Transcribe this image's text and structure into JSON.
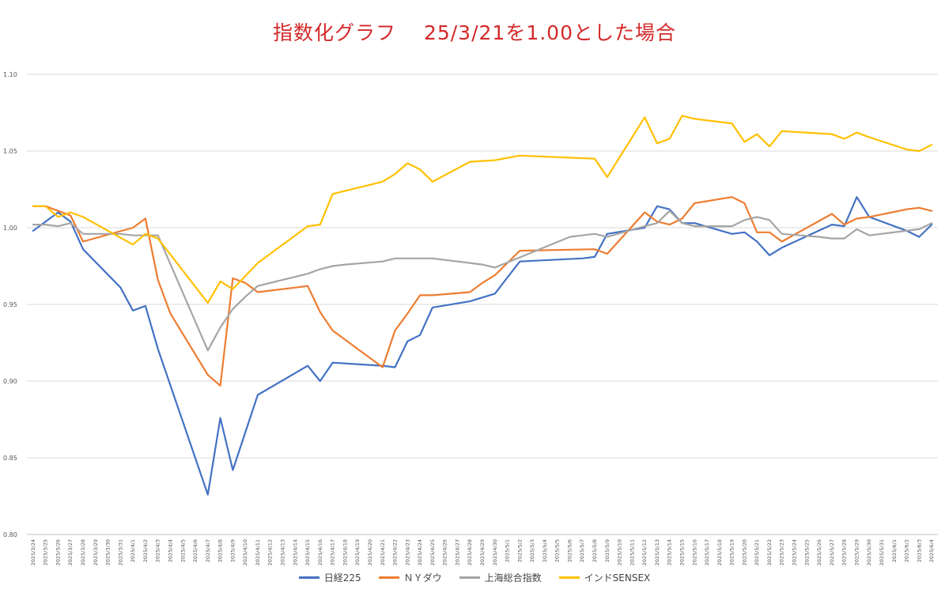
{
  "chart_data": {
    "type": "line",
    "title": "指数化グラフ　 25/3/21を1.00とした場合",
    "ylim": [
      0.8,
      1.1
    ],
    "yticks": [
      "0.80",
      "0.85",
      "0.90",
      "0.95",
      "1.00",
      "1.05",
      "1.10"
    ],
    "grid": true,
    "legend_position": "bottom",
    "categories": [
      "2025/3/24",
      "2025/3/25",
      "2025/3/26",
      "2025/3/27",
      "2025/3/28",
      "2025/3/29",
      "2025/3/30",
      "2025/3/31",
      "2025/4/1",
      "2025/4/2",
      "2025/4/3",
      "2025/4/4",
      "2025/4/5",
      "2025/4/6",
      "2025/4/7",
      "2025/4/8",
      "2025/4/9",
      "2025/4/10",
      "2025/4/11",
      "2025/4/12",
      "2025/4/13",
      "2025/4/14",
      "2025/4/15",
      "2025/4/16",
      "2025/4/17",
      "2025/4/18",
      "2025/4/19",
      "2025/4/20",
      "2025/4/21",
      "2025/4/22",
      "2025/4/23",
      "2025/4/24",
      "2025/4/25",
      "2025/4/26",
      "2025/4/27",
      "2025/4/28",
      "2025/4/29",
      "2025/4/30",
      "2025/5/1",
      "2025/5/2",
      "2025/5/3",
      "2025/5/4",
      "2025/5/5",
      "2025/5/6",
      "2025/5/7",
      "2025/5/8",
      "2025/5/9",
      "2025/5/10",
      "2025/5/11",
      "2025/5/12",
      "2025/5/13",
      "2025/5/14",
      "2025/5/15",
      "2025/5/16",
      "2025/5/17",
      "2025/5/18",
      "2025/5/19",
      "2025/5/20",
      "2025/5/21",
      "2025/5/22",
      "2025/5/23",
      "2025/5/24",
      "2025/5/25",
      "2025/5/26",
      "2025/5/27",
      "2025/5/28",
      "2025/5/29",
      "2025/5/30",
      "2025/5/31",
      "2025/6/1",
      "2025/6/2",
      "2025/6/3",
      "2025/6/4"
    ],
    "series": [
      {
        "name": "日経225",
        "color": "#4472c4",
        "points": [
          [
            "2025/3/24",
            0.998
          ],
          [
            "2025/3/26",
            1.01
          ],
          [
            "2025/3/27",
            1.004
          ],
          [
            "2025/3/28",
            0.986
          ],
          [
            "2025/3/31",
            0.961
          ],
          [
            "2025/4/1",
            0.946
          ],
          [
            "2025/4/2",
            0.949
          ],
          [
            "2025/4/3",
            0.921
          ],
          [
            "2025/4/7",
            0.826
          ],
          [
            "2025/4/8",
            0.876
          ],
          [
            "2025/4/9",
            0.842
          ],
          [
            "2025/4/11",
            0.891
          ],
          [
            "2025/4/15",
            0.91
          ],
          [
            "2025/4/16",
            0.9
          ],
          [
            "2025/4/17",
            0.912
          ],
          [
            "2025/4/21",
            0.91
          ],
          [
            "2025/4/22",
            0.909
          ],
          [
            "2025/4/23",
            0.926
          ],
          [
            "2025/4/24",
            0.93
          ],
          [
            "2025/4/25",
            0.948
          ],
          [
            "2025/4/28",
            0.952
          ],
          [
            "2025/4/30",
            0.957
          ],
          [
            "2025/5/2",
            0.978
          ],
          [
            "2025/5/7",
            0.98
          ],
          [
            "2025/5/8",
            0.981
          ],
          [
            "2025/5/9",
            0.996
          ],
          [
            "2025/5/12",
            1.0
          ],
          [
            "2025/5/13",
            1.014
          ],
          [
            "2025/5/14",
            1.012
          ],
          [
            "2025/5/15",
            1.003
          ],
          [
            "2025/5/16",
            1.003
          ],
          [
            "2025/5/19",
            0.996
          ],
          [
            "2025/5/20",
            0.997
          ],
          [
            "2025/5/21",
            0.991
          ],
          [
            "2025/5/22",
            0.982
          ],
          [
            "2025/5/23",
            0.987
          ],
          [
            "2025/5/27",
            1.002
          ],
          [
            "2025/5/28",
            1.001
          ],
          [
            "2025/5/29",
            1.02
          ],
          [
            "2025/5/30",
            1.007
          ],
          [
            "2025/6/2",
            0.998
          ],
          [
            "2025/6/3",
            0.994
          ],
          [
            "2025/6/4",
            1.002
          ]
        ]
      },
      {
        "name": "ＮＹダウ",
        "color": "#ed7d31",
        "points": [
          [
            "2025/3/24",
            1.014
          ],
          [
            "2025/3/25",
            1.014
          ],
          [
            "2025/3/26",
            1.011
          ],
          [
            "2025/3/27",
            1.008
          ],
          [
            "2025/3/28",
            0.991
          ],
          [
            "2025/4/1",
            1.0
          ],
          [
            "2025/4/2",
            1.006
          ],
          [
            "2025/4/3",
            0.966
          ],
          [
            "2025/4/4",
            0.944
          ],
          [
            "2025/4/7",
            0.904
          ],
          [
            "2025/4/8",
            0.897
          ],
          [
            "2025/4/9",
            0.967
          ],
          [
            "2025/4/10",
            0.964
          ],
          [
            "2025/4/11",
            0.958
          ],
          [
            "2025/4/14",
            0.961
          ],
          [
            "2025/4/15",
            0.962
          ],
          [
            "2025/4/16",
            0.945
          ],
          [
            "2025/4/17",
            0.933
          ],
          [
            "2025/4/21",
            0.909
          ],
          [
            "2025/4/22",
            0.933
          ],
          [
            "2025/4/23",
            0.944
          ],
          [
            "2025/4/24",
            0.956
          ],
          [
            "2025/4/25",
            0.956
          ],
          [
            "2025/4/28",
            0.958
          ],
          [
            "2025/4/29",
            0.964
          ],
          [
            "2025/4/30",
            0.969
          ],
          [
            "2025/5/1",
            0.977
          ],
          [
            "2025/5/2",
            0.985
          ],
          [
            "2025/5/8",
            0.986
          ],
          [
            "2025/5/9",
            0.983
          ],
          [
            "2025/5/12",
            1.01
          ],
          [
            "2025/5/13",
            1.004
          ],
          [
            "2025/5/14",
            1.002
          ],
          [
            "2025/5/15",
            1.006
          ],
          [
            "2025/5/16",
            1.016
          ],
          [
            "2025/5/19",
            1.02
          ],
          [
            "2025/5/20",
            1.016
          ],
          [
            "2025/5/21",
            0.997
          ],
          [
            "2025/5/22",
            0.997
          ],
          [
            "2025/5/23",
            0.991
          ],
          [
            "2025/5/27",
            1.009
          ],
          [
            "2025/5/28",
            1.002
          ],
          [
            "2025/5/29",
            1.006
          ],
          [
            "2025/5/30",
            1.007
          ],
          [
            "2025/6/2",
            1.012
          ],
          [
            "2025/6/3",
            1.013
          ],
          [
            "2025/6/4",
            1.011
          ]
        ]
      },
      {
        "name": "上海総合指数",
        "color": "#a5a5a5",
        "points": [
          [
            "2025/3/24",
            1.002
          ],
          [
            "2025/3/25",
            1.002
          ],
          [
            "2025/3/26",
            1.001
          ],
          [
            "2025/3/27",
            1.003
          ],
          [
            "2025/3/28",
            0.996
          ],
          [
            "2025/3/31",
            0.996
          ],
          [
            "2025/4/1",
            0.995
          ],
          [
            "2025/4/2",
            0.995
          ],
          [
            "2025/4/3",
            0.995
          ],
          [
            "2025/4/7",
            0.92
          ],
          [
            "2025/4/8",
            0.935
          ],
          [
            "2025/4/9",
            0.947
          ],
          [
            "2025/4/10",
            0.955
          ],
          [
            "2025/4/11",
            0.962
          ],
          [
            "2025/4/14",
            0.968
          ],
          [
            "2025/4/15",
            0.97
          ],
          [
            "2025/4/16",
            0.973
          ],
          [
            "2025/4/17",
            0.975
          ],
          [
            "2025/4/18",
            0.976
          ],
          [
            "2025/4/21",
            0.978
          ],
          [
            "2025/4/22",
            0.98
          ],
          [
            "2025/4/23",
            0.98
          ],
          [
            "2025/4/24",
            0.98
          ],
          [
            "2025/4/25",
            0.98
          ],
          [
            "2025/4/28",
            0.977
          ],
          [
            "2025/4/29",
            0.976
          ],
          [
            "2025/4/30",
            0.974
          ],
          [
            "2025/5/6",
            0.994
          ],
          [
            "2025/5/7",
            0.995
          ],
          [
            "2025/5/8",
            0.996
          ],
          [
            "2025/5/9",
            0.994
          ],
          [
            "2025/5/12",
            1.001
          ],
          [
            "2025/5/13",
            1.003
          ],
          [
            "2025/5/14",
            1.011
          ],
          [
            "2025/5/15",
            1.003
          ],
          [
            "2025/5/16",
            1.001
          ],
          [
            "2025/5/19",
            1.001
          ],
          [
            "2025/5/20",
            1.005
          ],
          [
            "2025/5/21",
            1.007
          ],
          [
            "2025/5/22",
            1.005
          ],
          [
            "2025/5/23",
            0.996
          ],
          [
            "2025/5/26",
            0.994
          ],
          [
            "2025/5/27",
            0.993
          ],
          [
            "2025/5/28",
            0.993
          ],
          [
            "2025/5/29",
            0.999
          ],
          [
            "2025/5/30",
            0.995
          ],
          [
            "2025/6/3",
            0.999
          ],
          [
            "2025/6/4",
            1.003
          ]
        ]
      },
      {
        "name": "インドSENSEX",
        "color": "#ffc000",
        "points": [
          [
            "2025/3/24",
            1.014
          ],
          [
            "2025/3/25",
            1.014
          ],
          [
            "2025/3/26",
            1.007
          ],
          [
            "2025/3/27",
            1.01
          ],
          [
            "2025/3/28",
            1.007
          ],
          [
            "2025/4/1",
            0.989
          ],
          [
            "2025/4/2",
            0.996
          ],
          [
            "2025/4/3",
            0.993
          ],
          [
            "2025/4/7",
            0.951
          ],
          [
            "2025/4/8",
            0.965
          ],
          [
            "2025/4/9",
            0.96
          ],
          [
            "2025/4/11",
            0.977
          ],
          [
            "2025/4/15",
            1.001
          ],
          [
            "2025/4/16",
            1.002
          ],
          [
            "2025/4/17",
            1.022
          ],
          [
            "2025/4/21",
            1.03
          ],
          [
            "2025/4/22",
            1.035
          ],
          [
            "2025/4/23",
            1.042
          ],
          [
            "2025/4/24",
            1.038
          ],
          [
            "2025/4/25",
            1.03
          ],
          [
            "2025/4/28",
            1.043
          ],
          [
            "2025/4/30",
            1.044
          ],
          [
            "2025/5/2",
            1.047
          ],
          [
            "2025/5/8",
            1.045
          ],
          [
            "2025/5/9",
            1.033
          ],
          [
            "2025/5/12",
            1.072
          ],
          [
            "2025/5/13",
            1.055
          ],
          [
            "2025/5/14",
            1.058
          ],
          [
            "2025/5/15",
            1.073
          ],
          [
            "2025/5/16",
            1.071
          ],
          [
            "2025/5/19",
            1.068
          ],
          [
            "2025/5/20",
            1.056
          ],
          [
            "2025/5/21",
            1.061
          ],
          [
            "2025/5/22",
            1.053
          ],
          [
            "2025/5/23",
            1.063
          ],
          [
            "2025/5/27",
            1.061
          ],
          [
            "2025/5/28",
            1.058
          ],
          [
            "2025/5/29",
            1.062
          ],
          [
            "2025/5/30",
            1.059
          ],
          [
            "2025/6/2",
            1.051
          ],
          [
            "2025/6/3",
            1.05
          ],
          [
            "2025/6/4",
            1.054
          ]
        ]
      }
    ]
  }
}
